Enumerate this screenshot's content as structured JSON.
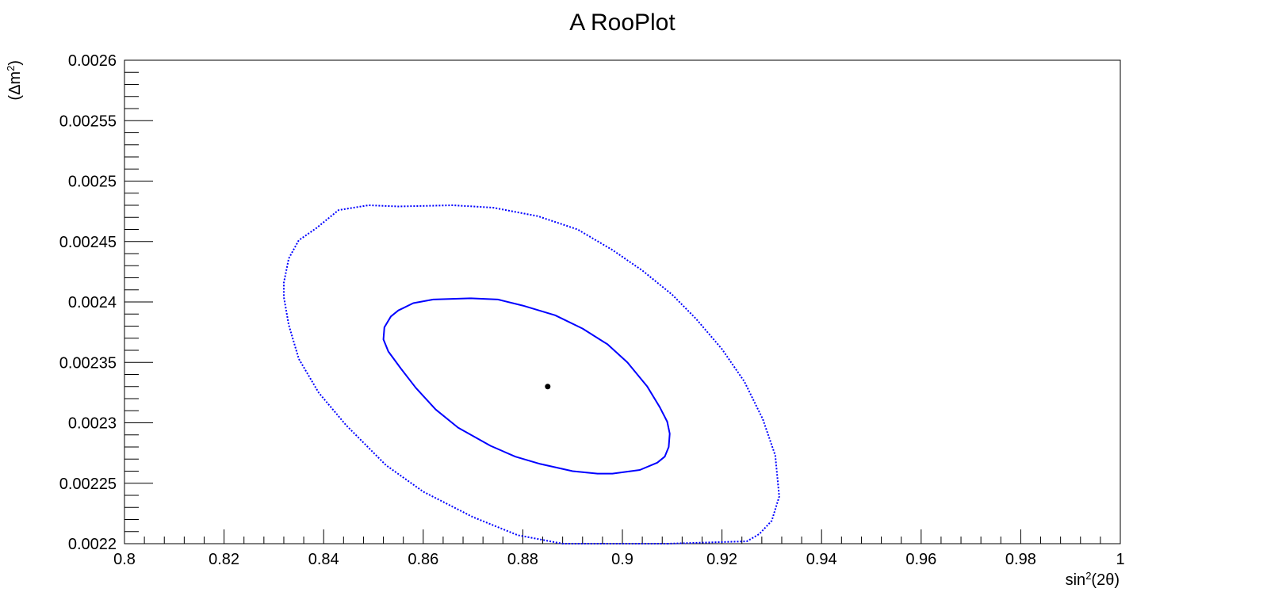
{
  "chart_data": {
    "type": "scatter",
    "title": "A RooPlot",
    "xlabel": {
      "prefix": "sin",
      "sup": "2",
      "suffix": "(2θ)"
    },
    "ylabel": {
      "prefix": "(Δm",
      "sup": "2",
      "suffix": ")"
    },
    "xlim": [
      0.8,
      1.0
    ],
    "ylim": [
      0.0022,
      0.0026
    ],
    "grid": false,
    "x_ticks": [
      "0.8",
      "0.82",
      "0.84",
      "0.86",
      "0.88",
      "0.9",
      "0.92",
      "0.94",
      "0.96",
      "0.98",
      "1"
    ],
    "y_ticks": [
      "0.0022",
      "0.00225",
      "0.0023",
      "0.00235",
      "0.0024",
      "0.00245",
      "0.0025",
      "0.00255",
      "0.0026"
    ],
    "best_fit": {
      "x": 0.885,
      "y": 0.00233,
      "color": "#000000"
    },
    "contours": [
      {
        "style": "solid",
        "color": "#0000ff",
        "points": [
          [
            0.8695,
            0.002403
          ],
          [
            0.875,
            0.002402
          ],
          [
            0.88,
            0.002397
          ],
          [
            0.8865,
            0.002389
          ],
          [
            0.892,
            0.002378
          ],
          [
            0.897,
            0.002365
          ],
          [
            0.901,
            0.00235
          ],
          [
            0.905,
            0.00233
          ],
          [
            0.9075,
            0.002313
          ],
          [
            0.909,
            0.002301
          ],
          [
            0.9095,
            0.002291
          ],
          [
            0.9093,
            0.00228
          ],
          [
            0.9085,
            0.002272
          ],
          [
            0.907,
            0.002267
          ],
          [
            0.9035,
            0.002261
          ],
          [
            0.898,
            0.002258
          ],
          [
            0.895,
            0.002258
          ],
          [
            0.89,
            0.00226
          ],
          [
            0.8835,
            0.002266
          ],
          [
            0.8785,
            0.002272
          ],
          [
            0.8735,
            0.002281
          ],
          [
            0.867,
            0.002296
          ],
          [
            0.8625,
            0.002311
          ],
          [
            0.8585,
            0.002329
          ],
          [
            0.8555,
            0.002345
          ],
          [
            0.853,
            0.002359
          ],
          [
            0.852,
            0.002369
          ],
          [
            0.8522,
            0.002379
          ],
          [
            0.8535,
            0.002388
          ],
          [
            0.855,
            0.002393
          ],
          [
            0.858,
            0.002399
          ],
          [
            0.862,
            0.002402
          ],
          [
            0.8695,
            0.002403
          ]
        ]
      },
      {
        "style": "dotted",
        "color": "#0000ff",
        "points": [
          [
            0.909,
            0.0022
          ],
          [
            0.925,
            0.002202
          ],
          [
            0.9275,
            0.002208
          ],
          [
            0.93,
            0.002219
          ],
          [
            0.9315,
            0.002239
          ],
          [
            0.9307,
            0.002273
          ],
          [
            0.9282,
            0.002303
          ],
          [
            0.9245,
            0.002334
          ],
          [
            0.92,
            0.002361
          ],
          [
            0.9148,
            0.002386
          ],
          [
            0.91,
            0.002406
          ],
          [
            0.904,
            0.002426
          ],
          [
            0.898,
            0.002443
          ],
          [
            0.891,
            0.00246
          ],
          [
            0.883,
            0.002471
          ],
          [
            0.874,
            0.002478
          ],
          [
            0.866,
            0.00248
          ],
          [
            0.855,
            0.002479
          ],
          [
            0.849,
            0.00248
          ],
          [
            0.843,
            0.002476
          ],
          [
            0.8385,
            0.002461
          ],
          [
            0.835,
            0.002451
          ],
          [
            0.833,
            0.002436
          ],
          [
            0.832,
            0.002416
          ],
          [
            0.832,
            0.002404
          ],
          [
            0.833,
            0.002381
          ],
          [
            0.835,
            0.002353
          ],
          [
            0.839,
            0.002325
          ],
          [
            0.8445,
            0.002298
          ],
          [
            0.8525,
            0.002265
          ],
          [
            0.86,
            0.002243
          ],
          [
            0.87,
            0.002222
          ],
          [
            0.879,
            0.002207
          ],
          [
            0.888,
            0.0022
          ],
          [
            0.909,
            0.0022
          ]
        ]
      }
    ]
  }
}
